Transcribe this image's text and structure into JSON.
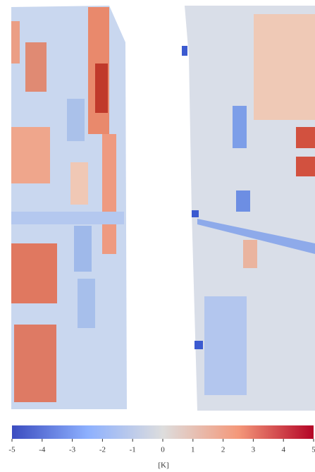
{
  "chart_data": {
    "type": "colorbar",
    "clim": [
      -5,
      5
    ],
    "cticks": [
      -5,
      -4,
      -3,
      -2,
      -1,
      0,
      1,
      2,
      3,
      4,
      5
    ],
    "clabel": "[K]",
    "cmap": [
      "#3b4cc0",
      "#8db0fe",
      "#dddddd",
      "#f4987a",
      "#b40426"
    ]
  }
}
